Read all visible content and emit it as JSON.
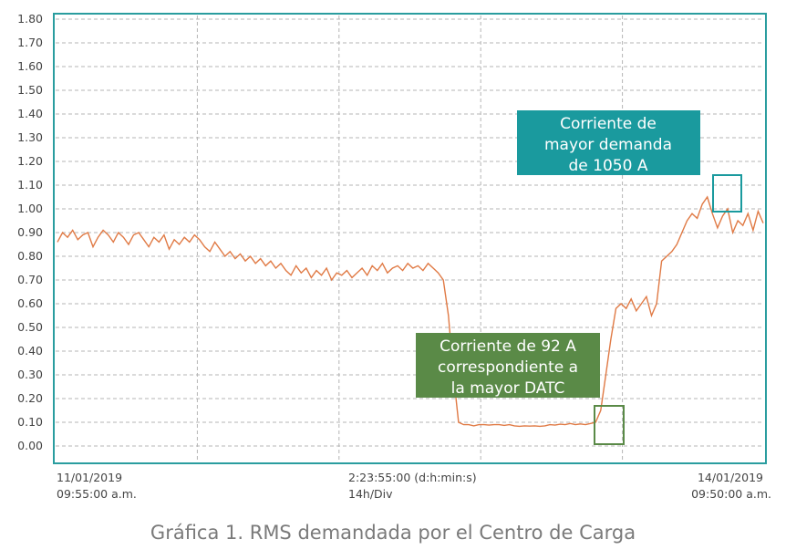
{
  "caption": "Gráfica 1. RMS demandada por el Centro de Carga",
  "chart_data": {
    "type": "line",
    "ylim": [
      0,
      1.8
    ],
    "y_ticks": [
      "0.00",
      "0.10",
      "0.20",
      "0.30",
      "0.40",
      "0.50",
      "0.60",
      "0.70",
      "0.80",
      "0.90",
      "1.00",
      "1.10",
      "1.20",
      "1.30",
      "1.40",
      "1.50",
      "1.60",
      "1.70",
      "1.80"
    ],
    "x_labels": [
      {
        "line1": "11/01/2019",
        "line2": "09:55:00 a.m."
      },
      {
        "line1": "2:23:55:00 (d:h:min:s)",
        "line2": "14h/Div"
      },
      {
        "line1": "14/01/2019",
        "line2": "09:50:00 a.m."
      }
    ],
    "grid": true,
    "series_color": "#e07a45",
    "series": [
      {
        "values": [
          0.86,
          0.9,
          0.88,
          0.91,
          0.87,
          0.89,
          0.9,
          0.84,
          0.88,
          0.91,
          0.89,
          0.86,
          0.9,
          0.88,
          0.85,
          0.89,
          0.9,
          0.87,
          0.84,
          0.88,
          0.86,
          0.89,
          0.83,
          0.87,
          0.85,
          0.88,
          0.86,
          0.89,
          0.87,
          0.84,
          0.82,
          0.86,
          0.83,
          0.8,
          0.82,
          0.79,
          0.81,
          0.78,
          0.8,
          0.77,
          0.79,
          0.76,
          0.78,
          0.75,
          0.77,
          0.74,
          0.72,
          0.76,
          0.73,
          0.75,
          0.71,
          0.74,
          0.72,
          0.75,
          0.7,
          0.73,
          0.72,
          0.74,
          0.71,
          0.73,
          0.75,
          0.72,
          0.76,
          0.74,
          0.77,
          0.73,
          0.75,
          0.76,
          0.74,
          0.77,
          0.75,
          0.76,
          0.74,
          0.77,
          0.75,
          0.73,
          0.7,
          0.55,
          0.3,
          0.1,
          0.09,
          0.09,
          0.085,
          0.09,
          0.09,
          0.088,
          0.09,
          0.09,
          0.087,
          0.09,
          0.085,
          0.083,
          0.085,
          0.084,
          0.085,
          0.083,
          0.085,
          0.09,
          0.088,
          0.092,
          0.09,
          0.095,
          0.09,
          0.093,
          0.09,
          0.095,
          0.1,
          0.15,
          0.3,
          0.45,
          0.58,
          0.6,
          0.58,
          0.62,
          0.57,
          0.6,
          0.63,
          0.55,
          0.6,
          0.78,
          0.8,
          0.82,
          0.85,
          0.9,
          0.95,
          0.98,
          0.96,
          1.02,
          1.05,
          0.98,
          0.92,
          0.97,
          1.0,
          0.9,
          0.95,
          0.93,
          0.98,
          0.91,
          0.99,
          0.94
        ]
      }
    ],
    "annotations": [
      {
        "lines": [
          "Corriente de",
          "mayor demanda",
          "de 1050 A"
        ],
        "color": "#1a9a9e"
      },
      {
        "lines": [
          "Corriente de 92 A",
          "correspondiente a",
          "la mayor DATC"
        ],
        "color": "#5a8a47"
      }
    ]
  }
}
